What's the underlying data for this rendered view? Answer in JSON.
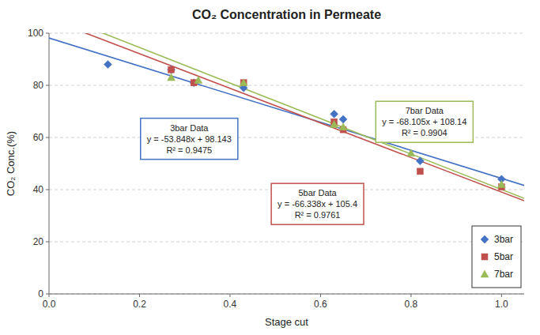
{
  "chart_data": {
    "type": "scatter",
    "title": "CO₂ Concentration in Permeate",
    "xlabel": "Stage cut",
    "ylabel": "CO₂ Conc.(%)",
    "xlim": [
      0,
      1.05
    ],
    "ylim": [
      0,
      100
    ],
    "xticks": [
      {
        "value": 0,
        "label": "0.0"
      },
      0.2,
      0.4,
      0.6,
      0.8,
      {
        "value": 1.0,
        "label": "1.0"
      }
    ],
    "yticks": [
      0,
      20,
      40,
      60,
      80,
      100
    ],
    "grid": true,
    "legend": "lower right",
    "series": [
      {
        "name": "3bar",
        "color": "#4472C4",
        "marker": "diamond",
        "x": [
          0.13,
          0.27,
          0.32,
          0.43,
          0.63,
          0.65,
          0.82,
          1.0
        ],
        "values": [
          88,
          86,
          81,
          79,
          69,
          67,
          51,
          44
        ],
        "slope": -53.848,
        "intercept": 98.143,
        "annotation": [
          "3bar Data",
          "y = -53.848x + 98.143",
          "R² = 0.9475"
        ]
      },
      {
        "name": "5bar",
        "color": "#C0504D",
        "marker": "square",
        "x": [
          0.27,
          0.32,
          0.43,
          0.63,
          0.65,
          0.82,
          1.0
        ],
        "values": [
          86,
          81,
          81,
          66,
          63,
          47,
          41
        ],
        "slope": -66.338,
        "intercept": 105.4,
        "annotation": [
          "5bar Data",
          "y = -66.338x + 105.4",
          "R² = 0.9761"
        ]
      },
      {
        "name": "7bar",
        "color": "#9BBB59",
        "marker": "triangle",
        "x": [
          0.27,
          0.33,
          0.43,
          0.63,
          0.65,
          0.8,
          1.0
        ],
        "values": [
          83,
          82,
          81,
          65,
          64,
          54,
          42
        ],
        "slope": -68.105,
        "intercept": 108.14,
        "annotation": [
          "7bar Data",
          "y = -68.105x + 108.14",
          "R² = 0.9904"
        ]
      }
    ]
  }
}
